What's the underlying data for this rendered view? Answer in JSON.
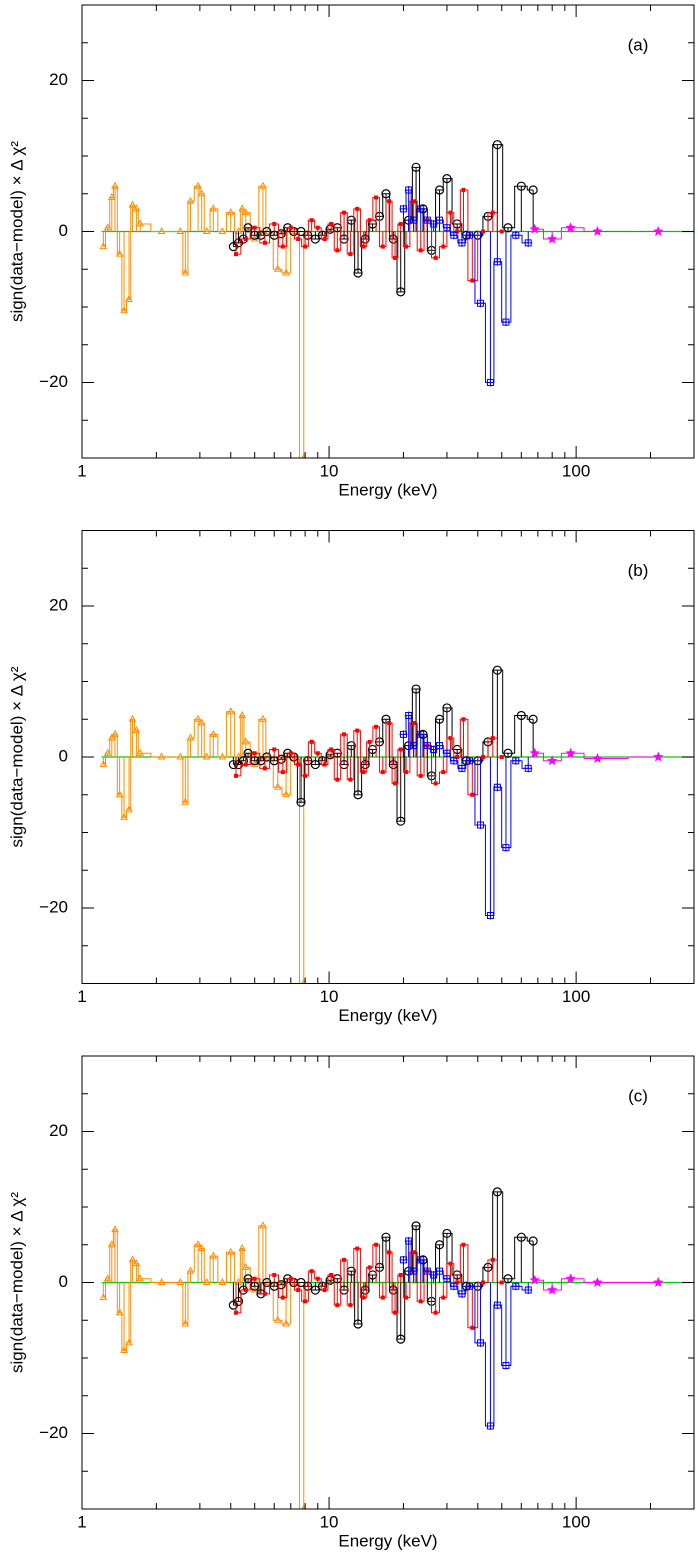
{
  "chart_data": [
    {
      "type": "step",
      "label": "(a)",
      "xlabel": "Energy (keV)",
      "ylabel": "sign(data−model) × Δ χ²",
      "xscale": "log",
      "xlim": [
        1,
        300
      ],
      "ylim": [
        -30,
        30
      ],
      "xticks": [
        1,
        10,
        100
      ],
      "yticks": [
        {
          "value": -20,
          "label": "−20"
        },
        0,
        20
      ],
      "xminorticks": [
        2,
        3,
        4,
        5,
        6,
        7,
        8,
        9,
        20,
        30,
        40,
        50,
        60,
        70,
        80,
        90,
        200
      ],
      "yminorticks": [
        -25,
        -15,
        -10,
        -5,
        5,
        10,
        15,
        25
      ],
      "series": [
        {
          "color": "#00cc00",
          "marker": "none",
          "x": [
            1.2,
            300
          ],
          "values": [
            0,
            0
          ]
        },
        {
          "color": "#ff8c00",
          "marker": "triangle",
          "x": [
            1.22,
            1.27,
            1.32,
            1.36,
            1.42,
            1.48,
            1.55,
            1.6,
            1.66,
            1.72,
            2.1,
            2.5,
            2.62,
            2.75,
            2.95,
            3.05,
            3.2,
            3.4,
            3.7,
            4.0,
            4.3,
            4.45,
            4.6,
            5.0,
            5.4,
            5.7,
            6.2,
            6.7,
            7.3,
            7.9
          ],
          "values": [
            -2,
            0.5,
            4.5,
            6,
            -3,
            -10.5,
            -9,
            3.5,
            3,
            1,
            0,
            0,
            -5.5,
            4,
            6,
            5,
            0,
            3,
            0,
            2.5,
            0,
            3,
            2.5,
            -1,
            6,
            0,
            -5,
            -5.5,
            0,
            -30
          ]
        },
        {
          "color": "#000000",
          "marker": "circle",
          "x": [
            4.1,
            4.3,
            4.5,
            4.7,
            5.0,
            5.3,
            5.6,
            6.0,
            6.4,
            6.8,
            7.2,
            7.7,
            8.2,
            8.8,
            9.4,
            10.1,
            10.8,
            11.5,
            12.3,
            13.1,
            14.0,
            15.0,
            16.0,
            17.0,
            18.2,
            19.5,
            21,
            22.5,
            24,
            26,
            28,
            30,
            33,
            36,
            40,
            44,
            48,
            53,
            60,
            67
          ],
          "values": [
            -2,
            -1.5,
            -1,
            0.5,
            -0.5,
            -0.5,
            0,
            -0.5,
            -0.3,
            0.5,
            0,
            0,
            -0.5,
            -1,
            -0.5,
            0.3,
            0.5,
            -1,
            1.5,
            -5.5,
            -1,
            1,
            2,
            5,
            -1,
            -8,
            1.5,
            8.5,
            3,
            -2.5,
            5.5,
            7,
            1,
            -0.5,
            -0.5,
            2,
            11.5,
            0.5,
            6,
            5.5
          ]
        },
        {
          "color": "#ff0000",
          "marker": "square",
          "x": [
            4.2,
            4.6,
            5,
            5.5,
            6,
            6.5,
            7,
            7.5,
            8,
            8.5,
            9,
            9.6,
            10.2,
            10.8,
            11.5,
            12.2,
            13,
            13.8,
            14.6,
            15.5,
            16.5,
            17.5,
            18.5,
            19.5,
            20.5,
            22,
            23.5,
            25,
            27,
            29,
            31,
            33,
            35,
            38,
            42,
            46,
            50
          ],
          "values": [
            -3,
            -1,
            0.5,
            -1.5,
            1,
            -2,
            0.5,
            -1,
            -2,
            1.5,
            0.5,
            -1,
            1,
            -2.5,
            2.5,
            -3,
            3,
            -2,
            1.5,
            4.5,
            -2,
            4,
            -3.5,
            1,
            -2,
            4,
            -2.5,
            1.5,
            -3.5,
            -2,
            2.5,
            0,
            5.5,
            -6.5,
            0,
            2.5,
            0
          ]
        },
        {
          "color": "#0000ff",
          "marker": "plus-square",
          "x": [
            20,
            21,
            22,
            23.5,
            25,
            26.5,
            28,
            30,
            32,
            34.5,
            37,
            41,
            45,
            48,
            52,
            57,
            64
          ],
          "values": [
            3,
            5.5,
            1.5,
            3,
            1.5,
            1,
            1.5,
            0.5,
            -0.5,
            -1.5,
            -0.5,
            -9.5,
            -20,
            -4,
            -12,
            -0.5,
            -1.5
          ]
        },
        {
          "color": "#ff00ff",
          "marker": "star",
          "x": [
            68,
            80,
            95,
            122,
            215
          ],
          "values": [
            0.3,
            -1,
            0.5,
            0,
            0
          ]
        }
      ]
    },
    {
      "type": "step",
      "label": "(b)",
      "xlabel": "Energy (keV)",
      "ylabel": "sign(data−model) × Δ χ²",
      "xscale": "log",
      "xlim": [
        1,
        300
      ],
      "ylim": [
        -30,
        30
      ],
      "xticks": [
        1,
        10,
        100
      ],
      "yticks": [
        {
          "value": -20,
          "label": "−20"
        },
        0,
        20
      ],
      "xminorticks": [
        2,
        3,
        4,
        5,
        6,
        7,
        8,
        9,
        20,
        30,
        40,
        50,
        60,
        70,
        80,
        90,
        200
      ],
      "yminorticks": [
        -25,
        -15,
        -10,
        -5,
        5,
        10,
        15,
        25
      ],
      "series": [
        {
          "color": "#00cc00",
          "marker": "none",
          "x": [
            1.2,
            300
          ],
          "values": [
            0,
            0
          ]
        },
        {
          "color": "#ff8c00",
          "marker": "triangle",
          "x": [
            1.22,
            1.27,
            1.32,
            1.36,
            1.42,
            1.48,
            1.55,
            1.6,
            1.66,
            1.72,
            2.1,
            2.5,
            2.62,
            2.75,
            2.95,
            3.05,
            3.2,
            3.4,
            3.7,
            4.0,
            4.3,
            4.45,
            4.6,
            5.0,
            5.4,
            5.7,
            6.2,
            6.7,
            7.3,
            7.9
          ],
          "values": [
            -1,
            0.5,
            2.5,
            3,
            -5,
            -8,
            -7,
            5,
            3.5,
            0.5,
            0,
            0,
            -6,
            2.5,
            5,
            4.5,
            0,
            3,
            0,
            6,
            0,
            5.5,
            2,
            -1,
            5,
            0,
            -4,
            -5,
            0,
            -30
          ]
        },
        {
          "color": "#000000",
          "marker": "circle",
          "x": [
            4.1,
            4.3,
            4.5,
            4.7,
            5.0,
            5.3,
            5.6,
            6.0,
            6.4,
            6.8,
            7.2,
            7.7,
            8.2,
            8.8,
            9.4,
            10.1,
            10.8,
            11.5,
            12.3,
            13.1,
            14.0,
            15.0,
            16.0,
            17.0,
            18.2,
            19.5,
            21,
            22.5,
            24,
            26,
            28,
            30,
            33,
            36,
            40,
            44,
            48,
            53,
            60,
            67
          ],
          "values": [
            -1,
            -1,
            -0.5,
            0.5,
            -0.5,
            -0.5,
            0,
            -0.5,
            -0.3,
            0.5,
            0,
            -6,
            -0.5,
            -1,
            -0.5,
            0.3,
            0.5,
            -1,
            1.5,
            -5,
            -1,
            1,
            2,
            5,
            -1,
            -8.5,
            1.5,
            9,
            3,
            -2.5,
            5,
            6.5,
            1,
            -0.5,
            -0.5,
            2,
            11.5,
            0.5,
            5.5,
            5
          ]
        },
        {
          "color": "#ff0000",
          "marker": "square",
          "x": [
            4.2,
            4.6,
            5,
            5.5,
            6,
            6.5,
            7,
            7.5,
            8,
            8.5,
            9,
            9.6,
            10.2,
            10.8,
            11.5,
            12.2,
            13,
            13.8,
            14.6,
            15.5,
            16.5,
            17.5,
            18.5,
            19.5,
            20.5,
            22,
            23.5,
            25,
            27,
            29,
            31,
            33,
            35,
            38,
            42,
            46,
            50
          ],
          "values": [
            -2.5,
            -1,
            0.5,
            -1.5,
            1,
            -2,
            0.5,
            -1,
            -2.5,
            2,
            0.5,
            -1,
            1,
            -3,
            3,
            -3,
            3.5,
            -2,
            2,
            4,
            -2,
            4.5,
            -3.5,
            1,
            -2,
            4.5,
            -2.5,
            1.5,
            -3.5,
            -2,
            2.5,
            0,
            5,
            -5,
            0,
            2.5,
            0
          ]
        },
        {
          "color": "#0000ff",
          "marker": "plus-square",
          "x": [
            20,
            21,
            22,
            23.5,
            25,
            26.5,
            28,
            30,
            32,
            34.5,
            37,
            41,
            45,
            48,
            52,
            57,
            64
          ],
          "values": [
            3,
            5.5,
            1.5,
            3,
            1.5,
            1,
            1.5,
            0.5,
            -0.5,
            -1.5,
            -0.5,
            -9,
            -21,
            -4,
            -12,
            -0.5,
            -1.5
          ]
        },
        {
          "color": "#ff00ff",
          "marker": "star",
          "x": [
            68,
            80,
            95,
            122,
            215
          ],
          "values": [
            0.5,
            -0.5,
            0.5,
            -0.2,
            0
          ]
        }
      ]
    },
    {
      "type": "step",
      "label": "(c)",
      "xlabel": "Energy (keV)",
      "ylabel": "sign(data−model) × Δ χ²",
      "xscale": "log",
      "xlim": [
        1,
        300
      ],
      "ylim": [
        -30,
        30
      ],
      "xticks": [
        1,
        10,
        100
      ],
      "yticks": [
        {
          "value": -20,
          "label": "−20"
        },
        0,
        20
      ],
      "xminorticks": [
        2,
        3,
        4,
        5,
        6,
        7,
        8,
        9,
        20,
        30,
        40,
        50,
        60,
        70,
        80,
        90,
        200
      ],
      "yminorticks": [
        -25,
        -15,
        -10,
        -5,
        5,
        10,
        15,
        25
      ],
      "series": [
        {
          "color": "#00cc00",
          "marker": "none",
          "x": [
            1.2,
            300
          ],
          "values": [
            0,
            0
          ]
        },
        {
          "color": "#ff8c00",
          "marker": "triangle",
          "x": [
            1.22,
            1.27,
            1.32,
            1.36,
            1.42,
            1.48,
            1.55,
            1.6,
            1.66,
            1.72,
            2.1,
            2.5,
            2.62,
            2.75,
            2.95,
            3.05,
            3.2,
            3.4,
            3.7,
            4.0,
            4.3,
            4.45,
            4.6,
            5.0,
            5.4,
            5.7,
            6.2,
            6.7,
            7.3,
            7.9
          ],
          "values": [
            -2,
            0.5,
            5,
            7,
            -4,
            -9,
            -8,
            3,
            2.5,
            0.5,
            0,
            0,
            -5.5,
            1.5,
            5,
            4.5,
            0,
            3.5,
            0,
            4,
            0,
            4.5,
            2,
            -1,
            7.5,
            0,
            -5,
            -5.5,
            0,
            -30
          ]
        },
        {
          "color": "#000000",
          "marker": "circle",
          "x": [
            4.1,
            4.3,
            4.5,
            4.7,
            5.0,
            5.3,
            5.6,
            6.0,
            6.4,
            6.8,
            7.2,
            7.7,
            8.2,
            8.8,
            9.4,
            10.1,
            10.8,
            11.5,
            12.3,
            13.1,
            14.0,
            15.0,
            16.0,
            17.0,
            18.2,
            19.5,
            21,
            22.5,
            24,
            26,
            28,
            30,
            33,
            36,
            40,
            44,
            48,
            53,
            60,
            67
          ],
          "values": [
            -3,
            -2.5,
            -1,
            0.5,
            -0.5,
            -1.5,
            0,
            -0.5,
            -0.3,
            0.5,
            0,
            0,
            -0.5,
            -1,
            -0.5,
            0.3,
            0.5,
            -1,
            1.5,
            -5.5,
            -1,
            1,
            2,
            6,
            -1,
            -7.5,
            1.5,
            7.5,
            3,
            -2.5,
            5,
            6.5,
            1,
            -0.5,
            -0.5,
            2,
            12,
            0.5,
            6,
            5.5
          ]
        },
        {
          "color": "#ff0000",
          "marker": "square",
          "x": [
            4.2,
            4.6,
            5,
            5.5,
            6,
            6.5,
            7,
            7.5,
            8,
            8.5,
            9,
            9.6,
            10.2,
            10.8,
            11.5,
            12.2,
            13,
            13.8,
            14.6,
            15.5,
            16.5,
            17.5,
            18.5,
            19.5,
            20.5,
            22,
            23.5,
            25,
            27,
            29,
            31,
            33,
            35,
            38,
            42,
            46,
            50
          ],
          "values": [
            -4,
            -1,
            0.5,
            -1.5,
            1,
            -2,
            0.5,
            -1,
            -2.5,
            1.5,
            0.5,
            -1,
            1,
            -3,
            3,
            -3,
            4.5,
            -2,
            2,
            5,
            -2,
            4,
            -4,
            1,
            -2,
            4,
            -2.5,
            1.5,
            -4,
            -2,
            2.5,
            0,
            5,
            -6,
            0,
            3,
            0
          ]
        },
        {
          "color": "#0000ff",
          "marker": "plus-square",
          "x": [
            20,
            21,
            22,
            23.5,
            25,
            26.5,
            28,
            30,
            32,
            34.5,
            37,
            41,
            45,
            48,
            52,
            57,
            64
          ],
          "values": [
            3,
            5.5,
            1.5,
            3,
            1.5,
            1,
            1.5,
            0.5,
            -0.5,
            -1.5,
            -0.5,
            -8,
            -19,
            -3,
            -11,
            -0.5,
            -1
          ]
        },
        {
          "color": "#ff00ff",
          "marker": "star",
          "x": [
            68,
            80,
            95,
            122,
            215
          ],
          "values": [
            0.3,
            -1,
            0.5,
            0,
            0
          ]
        }
      ]
    }
  ]
}
